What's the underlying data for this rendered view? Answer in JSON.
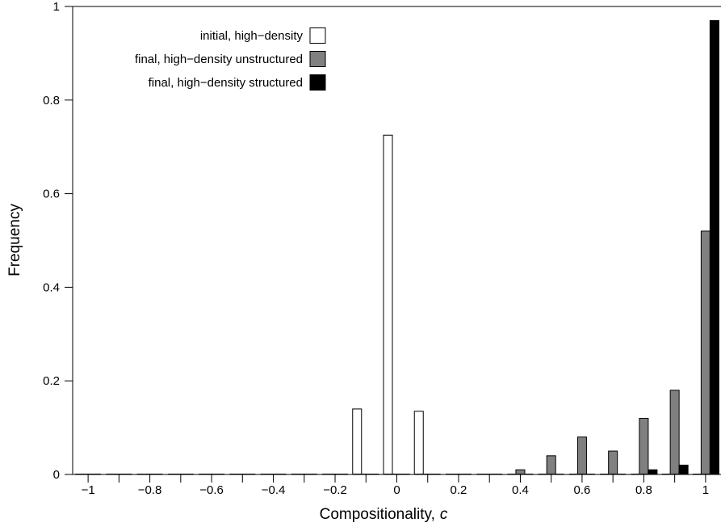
{
  "chart_data": {
    "type": "bar",
    "xlabel": "Compositionality,",
    "xlabel_var": "c",
    "ylabel": "Frequency",
    "xlim": [
      -1.05,
      1.05
    ],
    "ylim": [
      0,
      1
    ],
    "x_ticks": [
      -1,
      -0.8,
      -0.6,
      -0.4,
      -0.2,
      0,
      0.2,
      0.4,
      0.6,
      0.8,
      1
    ],
    "x_tick_labels": [
      "−1",
      "−0.8",
      "−0.6",
      "−0.4",
      "−0.2",
      "0",
      "0.2",
      "0.4",
      "0.6",
      "0.8",
      "1"
    ],
    "y_ticks": [
      0,
      0.2,
      0.4,
      0.6,
      0.8,
      1
    ],
    "y_tick_labels": [
      "0",
      "0.2",
      "0.4",
      "0.6",
      "0.8",
      "1"
    ],
    "bin_centers": [
      -1,
      -0.9,
      -0.8,
      -0.7,
      -0.6,
      -0.5,
      -0.4,
      -0.3,
      -0.2,
      -0.1,
      0,
      0.1,
      0.2,
      0.3,
      0.4,
      0.5,
      0.6,
      0.7,
      0.8,
      0.9,
      1
    ],
    "legend_position": "top-right",
    "series": [
      {
        "name": "initial, high−density",
        "color": "#ffffff",
        "values": [
          0,
          0,
          0,
          0,
          0,
          0,
          0,
          0,
          0,
          0.14,
          0.725,
          0.135,
          0,
          0,
          0,
          0,
          0,
          0,
          0,
          0,
          0
        ]
      },
      {
        "name": "final, high−density unstructured",
        "color": "#808080",
        "values": [
          0,
          0,
          0,
          0,
          0,
          0,
          0,
          0,
          0,
          0,
          0,
          0,
          0,
          0,
          0.01,
          0.04,
          0.08,
          0.05,
          0.12,
          0.18,
          0.52
        ]
      },
      {
        "name": "final, high−density structured",
        "color": "#000000",
        "values": [
          0,
          0,
          0,
          0,
          0,
          0,
          0,
          0,
          0,
          0,
          0,
          0,
          0,
          0,
          0,
          0,
          0,
          0,
          0.01,
          0.02,
          0.97
        ]
      }
    ]
  }
}
